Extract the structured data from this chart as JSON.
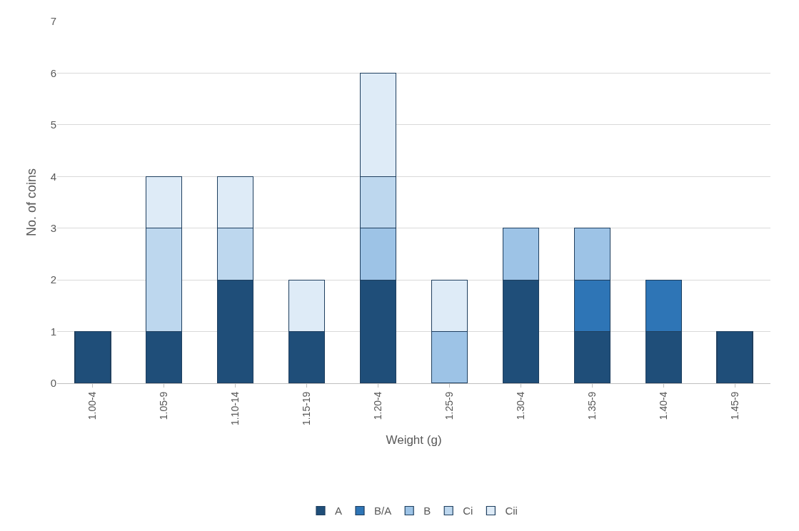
{
  "chart_data": {
    "type": "bar",
    "stacked": true,
    "xlabel": "Weight (g)",
    "ylabel": "No. of coins",
    "categories": [
      "1.00-4",
      "1.05-9",
      "1.10-14",
      "1.15-19",
      "1.20-4",
      "1.25-9",
      "1.30-4",
      "1.35-9",
      "1.40-4",
      "1.45-9"
    ],
    "series": [
      {
        "name": "A",
        "color": "#1f4e79",
        "values": [
          1,
          1,
          2,
          1,
          2,
          null,
          2,
          1,
          1,
          1
        ]
      },
      {
        "name": "B/A",
        "color": "#2e75b6",
        "values": [
          null,
          null,
          null,
          null,
          null,
          null,
          null,
          1,
          1,
          null
        ]
      },
      {
        "name": "B",
        "color": "#9dc3e6",
        "values": [
          null,
          null,
          null,
          null,
          1,
          1,
          1,
          1,
          null,
          null
        ]
      },
      {
        "name": "Ci",
        "color": "#bdd7ee",
        "values": [
          null,
          2,
          1,
          null,
          1,
          null,
          null,
          null,
          null,
          null
        ]
      },
      {
        "name": "Cii",
        "color": "#deebf7",
        "values": [
          null,
          1,
          1,
          1,
          2,
          1,
          null,
          null,
          null,
          null
        ]
      }
    ],
    "ylim": [
      0,
      7
    ],
    "yticks": [
      0,
      1,
      2,
      3,
      4,
      5,
      6,
      7
    ],
    "grid": "y",
    "legend": "bottom"
  }
}
